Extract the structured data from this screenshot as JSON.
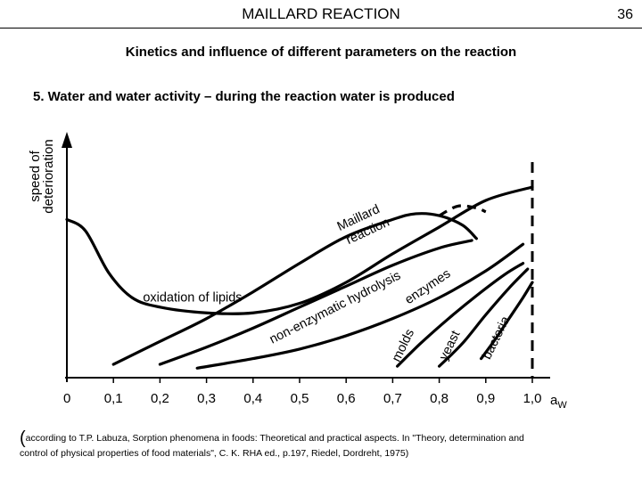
{
  "header": {
    "title": "MAILLARD REACTION",
    "page_number": "36"
  },
  "subtitle": "Kinetics and influence of different parameters on the reaction",
  "section": "5. Water and water activity – during the reaction water is produced",
  "citation": {
    "paren": "(",
    "line1": "according to T.P. Labuza, Sorption phenomena in foods: Theoretical and practical aspects. In \"Theory, determination and",
    "line2": "control of physical properties of food materials\", C. K. RHA ed., p.197, Riedel, Dordreht, 1975)"
  },
  "chart_data": {
    "type": "line",
    "title": "",
    "ylabel_lines": [
      "speed of",
      "deterioration"
    ],
    "xlabel": "aW",
    "xlim": [
      0,
      1.0
    ],
    "ylim": [
      0,
      1
    ],
    "x_ticks": [
      0,
      0.1,
      0.2,
      0.3,
      0.4,
      0.5,
      0.6,
      0.7,
      0.8,
      0.9,
      1.0
    ],
    "x_tick_labels": [
      "0",
      "0,1",
      "0,2",
      "0,3",
      "0,4",
      "0,5",
      "0,6",
      "0,7",
      "0,8",
      "0,9",
      "1,0"
    ],
    "reference_line": {
      "x": 1.0,
      "style": "dashed"
    },
    "series": [
      {
        "name": "oxidation of lipids",
        "x": [
          0,
          0.04,
          0.09,
          0.14,
          0.2,
          0.3,
          0.4,
          0.5,
          0.6,
          0.7,
          0.8,
          0.9,
          1.0
        ],
        "y": [
          0.83,
          0.77,
          0.55,
          0.42,
          0.37,
          0.34,
          0.34,
          0.39,
          0.5,
          0.65,
          0.79,
          0.93,
          1.0
        ]
      },
      {
        "name": "Maillard reaction",
        "x": [
          0.1,
          0.2,
          0.3,
          0.4,
          0.5,
          0.6,
          0.7,
          0.75,
          0.8,
          0.85,
          0.88
        ],
        "y": [
          0.07,
          0.19,
          0.31,
          0.45,
          0.6,
          0.74,
          0.83,
          0.86,
          0.85,
          0.8,
          0.73
        ]
      },
      {
        "name": "Maillard reaction (dashed extension)",
        "style": "dashed",
        "x": [
          0.8,
          0.84,
          0.88,
          0.9
        ],
        "y": [
          0.85,
          0.9,
          0.89,
          0.87
        ]
      },
      {
        "name": "non-enzymatic hydrolysis",
        "x": [
          0.2,
          0.3,
          0.4,
          0.5,
          0.6,
          0.7,
          0.8,
          0.87
        ],
        "y": [
          0.07,
          0.16,
          0.26,
          0.37,
          0.48,
          0.59,
          0.68,
          0.72
        ]
      },
      {
        "name": "enzymes",
        "x": [
          0.28,
          0.4,
          0.5,
          0.6,
          0.7,
          0.8,
          0.9,
          0.98
        ],
        "y": [
          0.05,
          0.1,
          0.15,
          0.22,
          0.31,
          0.42,
          0.56,
          0.7
        ]
      },
      {
        "name": "molds",
        "x": [
          0.71,
          0.76,
          0.82,
          0.88,
          0.94,
          0.98
        ],
        "y": [
          0.06,
          0.18,
          0.31,
          0.43,
          0.54,
          0.6
        ]
      },
      {
        "name": "yeast",
        "x": [
          0.8,
          0.85,
          0.9,
          0.95,
          0.99
        ],
        "y": [
          0.06,
          0.18,
          0.33,
          0.47,
          0.57
        ]
      },
      {
        "name": "bacteria",
        "x": [
          0.89,
          0.92,
          0.95,
          0.98,
          1.0
        ],
        "y": [
          0.1,
          0.2,
          0.31,
          0.42,
          0.5
        ]
      }
    ],
    "curve_labels": [
      {
        "text": "oxidation of lipids",
        "x": 0.27,
        "y": 0.4,
        "angle": 0
      },
      {
        "text": "Maillard",
        "x": 0.63,
        "y": 0.82,
        "angle": -25
      },
      {
        "text": "reaction",
        "x": 0.65,
        "y": 0.75,
        "angle": -25
      },
      {
        "text": "non-enzymatic hydrolysis",
        "x": 0.58,
        "y": 0.35,
        "angle": -27
      },
      {
        "text": "enzymes",
        "x": 0.78,
        "y": 0.46,
        "angle": -34
      },
      {
        "text": "molds",
        "x": 0.73,
        "y": 0.16,
        "angle": -64
      },
      {
        "text": "yeast",
        "x": 0.83,
        "y": 0.16,
        "angle": -64
      },
      {
        "text": "bacteria",
        "x": 0.93,
        "y": 0.2,
        "angle": -64
      }
    ],
    "grid": false,
    "legend": "none"
  }
}
